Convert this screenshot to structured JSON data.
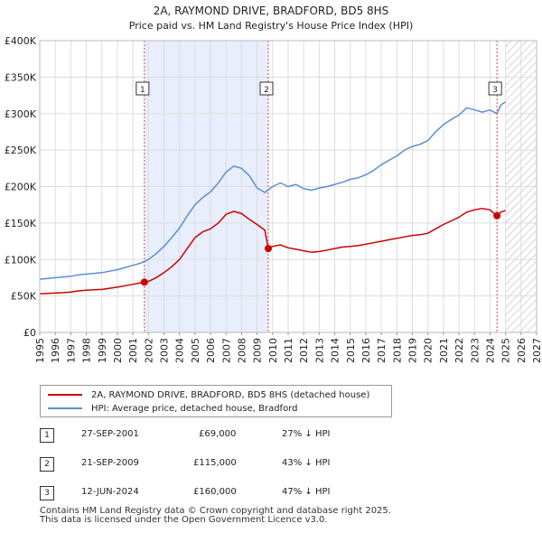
{
  "chart_data": {
    "type": "line",
    "title": "2A, RAYMOND DRIVE, BRADFORD, BD5 8HS",
    "subtitle": "Price paid vs. HM Land Registry's House Price Index (HPI)",
    "xlim": [
      1995,
      2027
    ],
    "ylim": [
      0,
      400000
    ],
    "x_ticks": [
      "1995",
      "1996",
      "1997",
      "1998",
      "1999",
      "2000",
      "2001",
      "2002",
      "2003",
      "2004",
      "2005",
      "2006",
      "2007",
      "2008",
      "2009",
      "2010",
      "2011",
      "2012",
      "2013",
      "2014",
      "2015",
      "2016",
      "2017",
      "2018",
      "2019",
      "2020",
      "2021",
      "2022",
      "2023",
      "2024",
      "2025",
      "2026",
      "2027"
    ],
    "y_ticks": [
      {
        "value": 0,
        "label": "£0"
      },
      {
        "value": 50000,
        "label": "£50K"
      },
      {
        "value": 100000,
        "label": "£100K"
      },
      {
        "value": 150000,
        "label": "£150K"
      },
      {
        "value": 200000,
        "label": "£200K"
      },
      {
        "value": 250000,
        "label": "£250K"
      },
      {
        "value": 300000,
        "label": "£300K"
      },
      {
        "value": 350000,
        "label": "£350K"
      },
      {
        "value": 400000,
        "label": "£400K"
      }
    ],
    "shaded_period": [
      2001.74,
      2009.72
    ],
    "forecast_from": 2025.0,
    "series": [
      {
        "name": "2A, RAYMOND DRIVE, BRADFORD, BD5 8HS (detached house)",
        "color": "#cc0000",
        "points": [
          [
            1995.0,
            53000
          ],
          [
            1995.5,
            53500
          ],
          [
            1996.0,
            54000
          ],
          [
            1996.5,
            54500
          ],
          [
            1997.0,
            55500
          ],
          [
            1997.5,
            57000
          ],
          [
            1998.0,
            58000
          ],
          [
            1998.5,
            58500
          ],
          [
            1999.0,
            59000
          ],
          [
            1999.5,
            60500
          ],
          [
            2000.0,
            62000
          ],
          [
            2000.5,
            64000
          ],
          [
            2001.0,
            66000
          ],
          [
            2001.5,
            68000
          ],
          [
            2001.74,
            69000
          ],
          [
            2002.0,
            70000
          ],
          [
            2002.5,
            75000
          ],
          [
            2003.0,
            82000
          ],
          [
            2003.5,
            90000
          ],
          [
            2004.0,
            100000
          ],
          [
            2004.5,
            115000
          ],
          [
            2005.0,
            130000
          ],
          [
            2005.5,
            138000
          ],
          [
            2006.0,
            142000
          ],
          [
            2006.5,
            150000
          ],
          [
            2007.0,
            162000
          ],
          [
            2007.5,
            166000
          ],
          [
            2008.0,
            163000
          ],
          [
            2008.5,
            155000
          ],
          [
            2009.0,
            148000
          ],
          [
            2009.5,
            140000
          ],
          [
            2009.72,
            115000
          ],
          [
            2010.0,
            118000
          ],
          [
            2010.5,
            120000
          ],
          [
            2011.0,
            116000
          ],
          [
            2011.5,
            114000
          ],
          [
            2012.0,
            112000
          ],
          [
            2012.5,
            110000
          ],
          [
            2013.0,
            111000
          ],
          [
            2013.5,
            113000
          ],
          [
            2014.0,
            115000
          ],
          [
            2014.5,
            117000
          ],
          [
            2015.0,
            118000
          ],
          [
            2015.5,
            119000
          ],
          [
            2016.0,
            121000
          ],
          [
            2016.5,
            123000
          ],
          [
            2017.0,
            125000
          ],
          [
            2017.5,
            127000
          ],
          [
            2018.0,
            129000
          ],
          [
            2018.5,
            131000
          ],
          [
            2019.0,
            133000
          ],
          [
            2019.5,
            134000
          ],
          [
            2020.0,
            136000
          ],
          [
            2020.5,
            142000
          ],
          [
            2021.0,
            148000
          ],
          [
            2021.5,
            153000
          ],
          [
            2022.0,
            158000
          ],
          [
            2022.5,
            165000
          ],
          [
            2023.0,
            168000
          ],
          [
            2023.5,
            170000
          ],
          [
            2024.0,
            168000
          ],
          [
            2024.45,
            160000
          ],
          [
            2024.7,
            165000
          ],
          [
            2025.0,
            167000
          ]
        ]
      },
      {
        "name": "HPI: Average price, detached house, Bradford",
        "color": "#5b8fd0",
        "points": [
          [
            1995.0,
            73000
          ],
          [
            1995.5,
            74000
          ],
          [
            1996.0,
            75000
          ],
          [
            1996.5,
            76000
          ],
          [
            1997.0,
            77000
          ],
          [
            1997.5,
            79000
          ],
          [
            1998.0,
            80000
          ],
          [
            1998.5,
            81000
          ],
          [
            1999.0,
            82000
          ],
          [
            1999.5,
            84000
          ],
          [
            2000.0,
            86000
          ],
          [
            2000.5,
            89000
          ],
          [
            2001.0,
            92000
          ],
          [
            2001.5,
            95000
          ],
          [
            2002.0,
            100000
          ],
          [
            2002.5,
            108000
          ],
          [
            2003.0,
            118000
          ],
          [
            2003.5,
            130000
          ],
          [
            2004.0,
            143000
          ],
          [
            2004.5,
            160000
          ],
          [
            2005.0,
            175000
          ],
          [
            2005.5,
            185000
          ],
          [
            2006.0,
            193000
          ],
          [
            2006.5,
            205000
          ],
          [
            2007.0,
            220000
          ],
          [
            2007.5,
            228000
          ],
          [
            2008.0,
            225000
          ],
          [
            2008.5,
            215000
          ],
          [
            2009.0,
            198000
          ],
          [
            2009.5,
            192000
          ],
          [
            2010.0,
            200000
          ],
          [
            2010.5,
            205000
          ],
          [
            2011.0,
            200000
          ],
          [
            2011.5,
            203000
          ],
          [
            2012.0,
            197000
          ],
          [
            2012.5,
            195000
          ],
          [
            2013.0,
            198000
          ],
          [
            2013.5,
            200000
          ],
          [
            2014.0,
            203000
          ],
          [
            2014.5,
            206000
          ],
          [
            2015.0,
            210000
          ],
          [
            2015.5,
            212000
          ],
          [
            2016.0,
            216000
          ],
          [
            2016.5,
            222000
          ],
          [
            2017.0,
            230000
          ],
          [
            2017.5,
            236000
          ],
          [
            2018.0,
            242000
          ],
          [
            2018.5,
            250000
          ],
          [
            2019.0,
            255000
          ],
          [
            2019.5,
            258000
          ],
          [
            2020.0,
            263000
          ],
          [
            2020.5,
            275000
          ],
          [
            2021.0,
            285000
          ],
          [
            2021.5,
            292000
          ],
          [
            2022.0,
            298000
          ],
          [
            2022.5,
            308000
          ],
          [
            2023.0,
            305000
          ],
          [
            2023.5,
            302000
          ],
          [
            2024.0,
            305000
          ],
          [
            2024.45,
            300000
          ],
          [
            2024.7,
            312000
          ],
          [
            2025.0,
            316000
          ]
        ]
      }
    ],
    "sales": [
      {
        "label": "1",
        "x": 2001.74,
        "value": 69000
      },
      {
        "label": "2",
        "x": 2009.72,
        "value": 115000
      },
      {
        "label": "3",
        "x": 2024.45,
        "value": 160000
      }
    ]
  },
  "legend": {
    "property": "2A, RAYMOND DRIVE, BRADFORD, BD5 8HS (detached house)",
    "hpi": "HPI: Average price, detached house, Bradford"
  },
  "sales_table": [
    {
      "num": "1",
      "date": "27-SEP-2001",
      "price": "£69,000",
      "hpi": "27% ↓ HPI"
    },
    {
      "num": "2",
      "date": "21-SEP-2009",
      "price": "£115,000",
      "hpi": "43% ↓ HPI"
    },
    {
      "num": "3",
      "date": "12-JUN-2024",
      "price": "£160,000",
      "hpi": "47% ↓ HPI"
    }
  ],
  "footer": {
    "line1": "Contains HM Land Registry data © Crown copyright and database right 2025.",
    "line2": "This data is licensed under the Open Government Licence v3.0."
  }
}
